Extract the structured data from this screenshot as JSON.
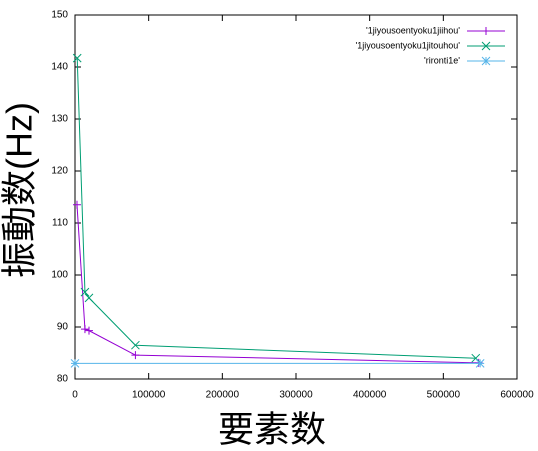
{
  "chart_data": {
    "type": "line",
    "xlabel": "要素数",
    "ylabel": "振動数(Hz)",
    "xlim": [
      0,
      600000
    ],
    "ylim": [
      80,
      150
    ],
    "xticks": [
      0,
      100000,
      200000,
      300000,
      400000,
      500000,
      600000
    ],
    "yticks": [
      80,
      90,
      100,
      110,
      120,
      130,
      140,
      150
    ],
    "legend": "top-right",
    "series": [
      {
        "name": "'1jiyousoentyoku1jiihou'",
        "color": "#9400d3",
        "marker": "plus",
        "x": [
          2700,
          13500,
          19000,
          82000,
          548000
        ],
        "values": [
          113.5,
          89.6,
          89.3,
          84.6,
          83.1
        ]
      },
      {
        "name": "'1jiyousoentyoku1jitouhou'",
        "color": "#009e73",
        "marker": "cross",
        "x": [
          3000,
          13500,
          19000,
          82000,
          544000
        ],
        "values": [
          141.7,
          96.7,
          95.6,
          86.5,
          84.0
        ]
      },
      {
        "name": "'rironti1e'",
        "color": "#56b4e9",
        "marker": "star",
        "x": [
          0,
          550000
        ],
        "values": [
          83.0,
          83.0
        ]
      }
    ]
  }
}
